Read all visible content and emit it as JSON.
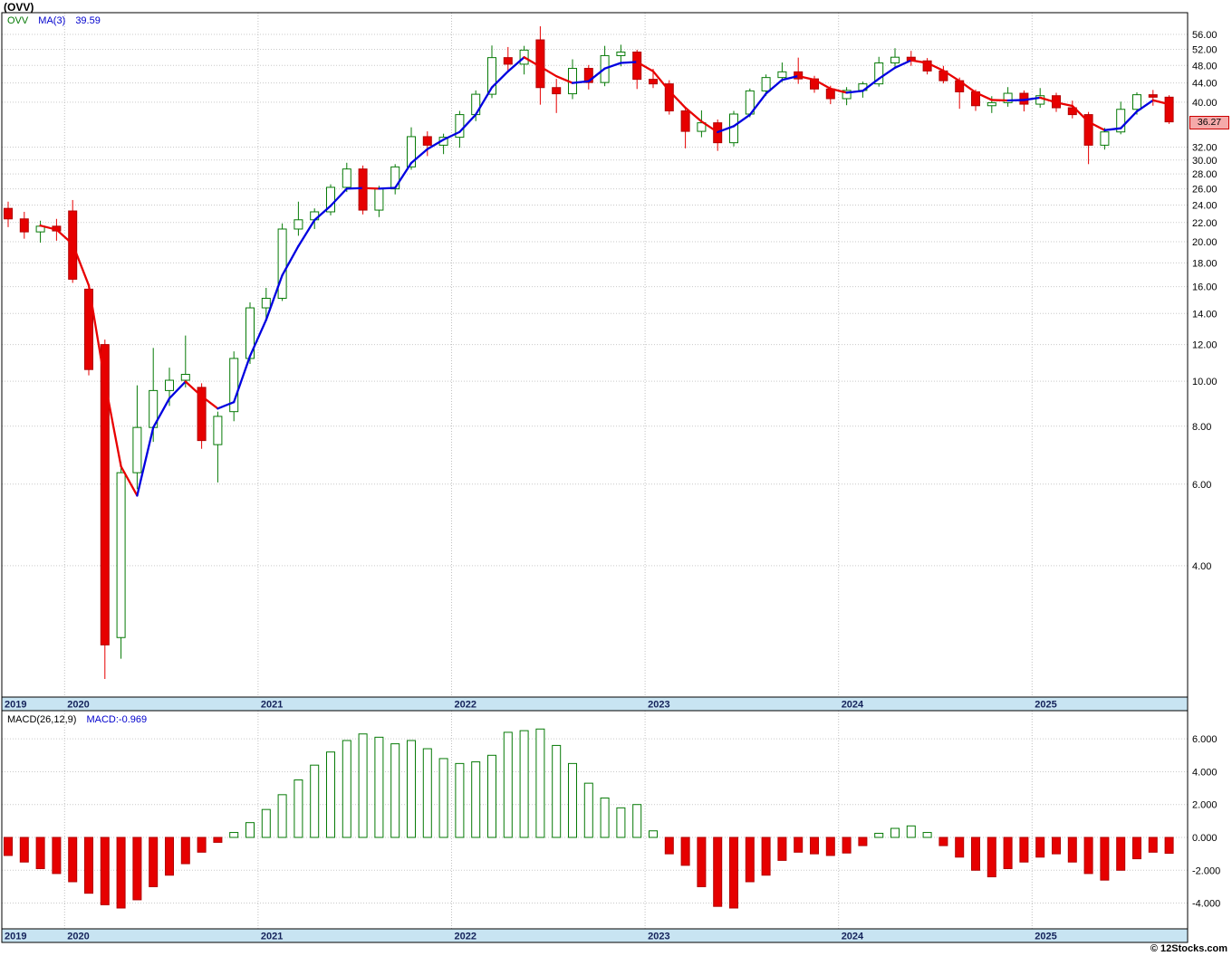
{
  "window": {
    "title": "(OVV)"
  },
  "price_panel": {
    "legend": {
      "symbol": "OVV",
      "ma_label": "MA(3)",
      "ma_value": "39.59"
    },
    "current_price_label": "36.27",
    "tick_labels": [
      "56.00",
      "52.00",
      "48.00",
      "44.00",
      "40.00",
      "32.00",
      "30.00",
      "28.00",
      "26.00",
      "24.00",
      "22.00",
      "20.00",
      "18.00",
      "16.00",
      "14.00",
      "12.00",
      "10.00",
      "8.00",
      "6.00",
      "4.00"
    ],
    "tick_values": [
      56,
      52,
      48,
      44,
      40,
      32,
      30,
      28,
      26,
      24,
      22,
      20,
      18,
      16,
      14,
      12,
      10,
      8,
      6,
      4
    ]
  },
  "macd_panel": {
    "indicator_label": "MACD(26,12,9)",
    "indicator_value": "MACD:-0.969",
    "tick_labels": [
      "6.000",
      "4.000",
      "2.000",
      "0.000",
      "-2.000",
      "-4.000"
    ],
    "tick_values": [
      6,
      4,
      2,
      0,
      -2,
      -4
    ]
  },
  "time_axis": {
    "years": [
      {
        "label": "2019",
        "index": 0
      },
      {
        "label": "2020",
        "index": 4
      },
      {
        "label": "2021",
        "index": 16
      },
      {
        "label": "2022",
        "index": 28
      },
      {
        "label": "2023",
        "index": 40
      },
      {
        "label": "2024",
        "index": 52
      },
      {
        "label": "2025",
        "index": 64
      }
    ]
  },
  "footer": {
    "copyright": "© 12Stocks.com"
  },
  "colors": {
    "up": "#067a06",
    "down": "#e60000",
    "ma_up": "#0000e0",
    "ma_down": "#e80000",
    "grid": "#c9c9c9",
    "year_gridline": "#c0c0c0",
    "band": "#c8e4f2",
    "year_text": "#14225a",
    "chip_bg": "#f5a9a9",
    "chip_border": "#cc0000"
  },
  "chart_data": [
    {
      "type": "candlestick",
      "title": "(OVV)",
      "symbol": "OVV",
      "overlay": "MA(3)",
      "ma_period": 3,
      "ma_last": 39.59,
      "current_close": 36.27,
      "y_scale": "log",
      "ylim": [
        2.05,
        62
      ],
      "y_ticks": [
        56,
        52,
        48,
        44,
        40,
        36.27,
        32,
        30,
        28,
        26,
        24,
        22,
        20,
        18,
        16,
        14,
        12,
        10,
        8,
        6,
        4
      ],
      "x_months": [
        "2019-09",
        "2019-10",
        "2019-11",
        "2019-12",
        "2020-01",
        "2020-02",
        "2020-03",
        "2020-04",
        "2020-05",
        "2020-06",
        "2020-07",
        "2020-08",
        "2020-09",
        "2020-10",
        "2020-11",
        "2020-12",
        "2021-01",
        "2021-02",
        "2021-03",
        "2021-04",
        "2021-05",
        "2021-06",
        "2021-07",
        "2021-08",
        "2021-09",
        "2021-10",
        "2021-11",
        "2021-12",
        "2022-01",
        "2022-02",
        "2022-03",
        "2022-04",
        "2022-05",
        "2022-06",
        "2022-07",
        "2022-08",
        "2022-09",
        "2022-10",
        "2022-11",
        "2022-12",
        "2023-01",
        "2023-02",
        "2023-03",
        "2023-04",
        "2023-05",
        "2023-06",
        "2023-07",
        "2023-08",
        "2023-09",
        "2023-10",
        "2023-11",
        "2023-12",
        "2024-01",
        "2024-02",
        "2024-03",
        "2024-04",
        "2024-05",
        "2024-06",
        "2024-07",
        "2024-08",
        "2024-09",
        "2024-10",
        "2024-11",
        "2024-12",
        "2025-01",
        "2025-02",
        "2025-03",
        "2025-04",
        "2025-05",
        "2025-06",
        "2025-07",
        "2025-08",
        "2025-09"
      ],
      "ohlc": [
        [
          23.6,
          24.4,
          21.5,
          22.4
        ],
        [
          22.4,
          23.2,
          20.3,
          21.0
        ],
        [
          21.0,
          22.2,
          19.9,
          21.6
        ],
        [
          21.6,
          22.4,
          20.1,
          21.1
        ],
        [
          23.3,
          24.6,
          16.3,
          16.6
        ],
        [
          15.8,
          16.2,
          10.3,
          10.6
        ],
        [
          12.0,
          12.3,
          2.28,
          2.7
        ],
        [
          2.8,
          6.7,
          2.52,
          6.35
        ],
        [
          6.35,
          9.8,
          5.85,
          7.95
        ],
        [
          7.95,
          11.8,
          7.4,
          9.55
        ],
        [
          9.55,
          10.7,
          8.85,
          10.05
        ],
        [
          10.05,
          12.55,
          9.7,
          10.35
        ],
        [
          9.7,
          9.9,
          7.15,
          7.45
        ],
        [
          7.3,
          8.6,
          6.05,
          8.4
        ],
        [
          8.6,
          11.6,
          8.2,
          11.2
        ],
        [
          11.2,
          14.8,
          10.9,
          14.4
        ],
        [
          14.4,
          15.9,
          13.6,
          15.1
        ],
        [
          15.1,
          21.9,
          14.9,
          21.3
        ],
        [
          21.3,
          24.4,
          20.6,
          22.3
        ],
        [
          22.3,
          23.6,
          21.3,
          23.2
        ],
        [
          23.2,
          26.6,
          22.8,
          26.2
        ],
        [
          26.2,
          29.6,
          25.6,
          28.7
        ],
        [
          28.7,
          29.2,
          22.9,
          23.4
        ],
        [
          23.4,
          26.4,
          22.6,
          26.0
        ],
        [
          26.0,
          29.4,
          25.3,
          29.0
        ],
        [
          29.0,
          35.3,
          28.6,
          33.7
        ],
        [
          33.7,
          34.6,
          30.6,
          32.3
        ],
        [
          32.3,
          34.2,
          30.9,
          33.6
        ],
        [
          33.6,
          38.3,
          31.9,
          37.6
        ],
        [
          37.6,
          42.4,
          36.4,
          41.6
        ],
        [
          41.6,
          53.0,
          40.8,
          49.9
        ],
        [
          49.9,
          52.6,
          46.8,
          48.3
        ],
        [
          48.3,
          52.9,
          45.9,
          51.8
        ],
        [
          54.5,
          58.3,
          39.5,
          43.0
        ],
        [
          43.0,
          44.9,
          37.9,
          41.7
        ],
        [
          41.7,
          49.5,
          40.6,
          47.3
        ],
        [
          47.3,
          48.1,
          42.6,
          44.1
        ],
        [
          44.1,
          52.9,
          43.3,
          50.4
        ],
        [
          50.4,
          53.2,
          47.8,
          51.3
        ],
        [
          51.3,
          51.9,
          42.7,
          44.8
        ],
        [
          44.8,
          47.2,
          42.9,
          43.8
        ],
        [
          43.8,
          44.6,
          37.6,
          38.3
        ],
        [
          38.3,
          39.1,
          31.8,
          34.6
        ],
        [
          34.6,
          38.4,
          33.6,
          36.1
        ],
        [
          36.1,
          36.7,
          31.4,
          32.7
        ],
        [
          32.7,
          38.3,
          32.1,
          37.7
        ],
        [
          37.7,
          42.8,
          37.1,
          42.3
        ],
        [
          42.3,
          45.9,
          41.3,
          45.2
        ],
        [
          45.2,
          48.7,
          44.2,
          46.5
        ],
        [
          46.5,
          49.9,
          43.8,
          44.9
        ],
        [
          44.9,
          45.6,
          41.9,
          42.7
        ],
        [
          42.7,
          43.4,
          39.6,
          40.7
        ],
        [
          40.7,
          43.1,
          39.4,
          42.4
        ],
        [
          42.4,
          44.3,
          40.9,
          43.8
        ],
        [
          43.8,
          50.1,
          43.2,
          48.6
        ],
        [
          48.6,
          52.3,
          47.6,
          50.0
        ],
        [
          50.0,
          51.6,
          47.9,
          49.1
        ],
        [
          49.1,
          49.8,
          45.9,
          46.7
        ],
        [
          46.7,
          47.9,
          43.9,
          44.5
        ],
        [
          44.5,
          45.2,
          38.7,
          42.1
        ],
        [
          42.1,
          42.6,
          38.3,
          39.3
        ],
        [
          39.3,
          41.2,
          37.9,
          39.9
        ],
        [
          39.9,
          43.1,
          39.1,
          41.8
        ],
        [
          41.8,
          42.4,
          38.2,
          39.6
        ],
        [
          39.6,
          42.9,
          38.9,
          41.3
        ],
        [
          41.3,
          41.9,
          38.1,
          38.9
        ],
        [
          38.9,
          40.3,
          36.9,
          37.6
        ],
        [
          37.6,
          38.1,
          29.4,
          32.3
        ],
        [
          32.3,
          35.2,
          31.6,
          34.5
        ],
        [
          34.5,
          40.1,
          34.1,
          38.6
        ],
        [
          38.6,
          42.0,
          37.6,
          41.5
        ],
        [
          41.5,
          42.5,
          39.3,
          41.0
        ],
        [
          41.0,
          41.4,
          35.9,
          36.27
        ]
      ]
    },
    {
      "type": "bar",
      "title": "MACD(26,12,9)",
      "last_value": -0.969,
      "ylim": [
        -4.6,
        7.0
      ],
      "x_shared_with_price_panel": true,
      "values": [
        -1.1,
        -1.5,
        -1.9,
        -2.2,
        -2.7,
        -3.4,
        -4.1,
        -4.3,
        -3.8,
        -3.0,
        -2.3,
        -1.6,
        -0.9,
        -0.3,
        0.3,
        0.9,
        1.7,
        2.6,
        3.5,
        4.4,
        5.2,
        5.9,
        6.3,
        6.1,
        5.7,
        5.9,
        5.4,
        4.8,
        4.5,
        4.6,
        5.0,
        6.4,
        6.5,
        6.6,
        5.6,
        4.5,
        3.3,
        2.4,
        1.8,
        2.0,
        0.4,
        -1.0,
        -1.7,
        -3.0,
        -4.2,
        -4.3,
        -2.7,
        -2.3,
        -1.4,
        -0.9,
        -1.0,
        -1.1,
        -0.95,
        -0.5,
        0.25,
        0.55,
        0.7,
        0.3,
        -0.5,
        -1.2,
        -2.0,
        -2.4,
        -1.9,
        -1.5,
        -1.2,
        -1.0,
        -1.5,
        -2.2,
        -2.6,
        -2.0,
        -1.3,
        -0.9,
        -0.969
      ]
    }
  ]
}
